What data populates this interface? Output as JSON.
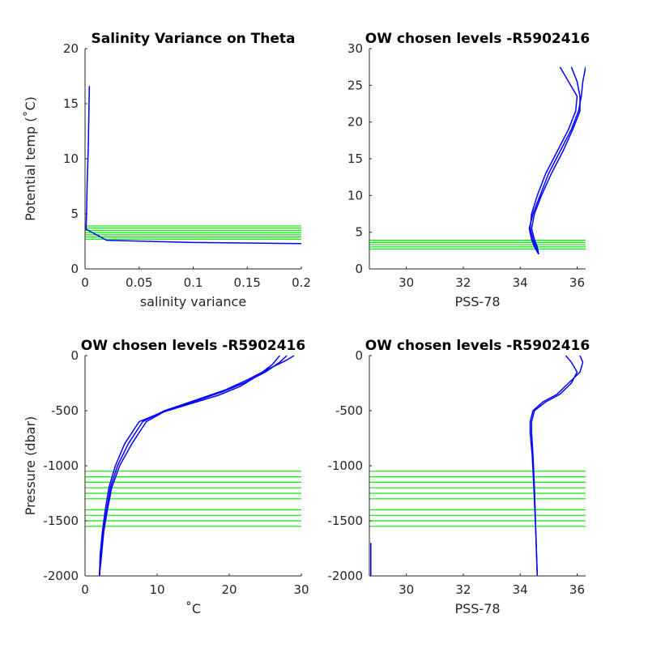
{
  "chart_data": [
    {
      "id": "p1",
      "type": "line",
      "title": "Salinity Variance on Theta",
      "xlabel": "salinity variance",
      "ylabel": "Potential temp (˚C)",
      "xlim": [
        0,
        0.2
      ],
      "ylim": [
        0,
        20
      ],
      "xticks": [
        0,
        0.05,
        0.1,
        0.15,
        0.2
      ],
      "yticks": [
        0,
        5,
        10,
        15,
        20
      ],
      "y_reversed": false,
      "series_color": "#0000ff",
      "levels_color": "#00ee00",
      "levels": [
        2.7,
        2.9,
        3.1,
        3.3,
        3.5,
        3.7,
        3.9
      ],
      "series": [
        {
          "x": [
            0.004,
            0.0035,
            0.003,
            0.002,
            0.0015,
            0.001,
            0.02,
            0.1,
            0.2
          ],
          "y": [
            16.6,
            14,
            11,
            8,
            5.5,
            3.6,
            2.6,
            2.4,
            2.3
          ]
        }
      ]
    },
    {
      "id": "p2",
      "type": "line",
      "title": "OW chosen levels -R5902416",
      "xlabel": "PSS-78",
      "ylabel": "",
      "xlim": [
        28.7,
        36.3
      ],
      "ylim": [
        0,
        30
      ],
      "xticks": [
        30,
        32,
        34,
        36
      ],
      "yticks": [
        0,
        5,
        10,
        15,
        20,
        25,
        30
      ],
      "y_reversed": false,
      "series_color": "#0000ff",
      "levels_color": "#00ee00",
      "levels": [
        2.7,
        3.0,
        3.3,
        3.6,
        3.9
      ],
      "series": [
        {
          "x": [
            34.65,
            34.55,
            34.45,
            34.35,
            34.4,
            34.6,
            34.9,
            35.3,
            35.7,
            35.95,
            36.0,
            35.7,
            35.4
          ],
          "y": [
            2.0,
            3.0,
            4.0,
            5.5,
            7.5,
            10,
            13,
            16,
            19,
            21.5,
            23.5,
            25.5,
            27.5
          ]
        },
        {
          "x": [
            34.65,
            34.5,
            34.4,
            34.32,
            34.45,
            34.7,
            35.0,
            35.4,
            35.8,
            36.05,
            36.15,
            36.2,
            36.3
          ],
          "y": [
            2.0,
            3.0,
            4.0,
            5.5,
            7.5,
            10,
            13,
            16,
            19,
            21.5,
            23.5,
            25.5,
            27.5
          ]
        },
        {
          "x": [
            34.65,
            34.6,
            34.5,
            34.4,
            34.5,
            34.75,
            35.1,
            35.5,
            35.85,
            36.1,
            36.1,
            36.0,
            35.8
          ],
          "y": [
            2.0,
            3.0,
            4.0,
            5.5,
            7.5,
            10,
            13,
            16,
            19,
            21.5,
            23.5,
            25.5,
            27.5
          ]
        }
      ]
    },
    {
      "id": "p3",
      "type": "line",
      "title": "OW chosen levels -R5902416",
      "xlabel": "˚C",
      "ylabel": "Pressure (dbar)",
      "xlim": [
        0,
        30
      ],
      "ylim": [
        -2000,
        0
      ],
      "xticks": [
        0,
        10,
        20,
        30
      ],
      "yticks": [
        0,
        -500,
        -1000,
        -1500,
        -2000
      ],
      "y_reversed": false,
      "series_color": "#0000ff",
      "levels_color": "#00ee00",
      "levels": [
        -1050,
        -1100,
        -1150,
        -1200,
        -1250,
        -1300,
        -1400,
        -1450,
        -1500,
        -1550
      ],
      "series": [
        {
          "x": [
            2.0,
            2.2,
            2.5,
            3.0,
            3.5,
            4.5,
            6.0,
            8.0,
            11.0,
            15.0,
            19.0,
            22.0,
            25.0,
            27.0,
            28.0
          ],
          "y": [
            -2000,
            -1800,
            -1600,
            -1400,
            -1200,
            -1000,
            -800,
            -600,
            -500,
            -420,
            -330,
            -250,
            -150,
            -60,
            0
          ]
        },
        {
          "x": [
            2.0,
            2.1,
            2.4,
            2.8,
            3.3,
            4.2,
            5.5,
            7.5,
            10.5,
            14.5,
            18.5,
            21.5,
            24.0,
            26.0,
            27.0
          ],
          "y": [
            -2000,
            -1800,
            -1600,
            -1400,
            -1200,
            -1000,
            -800,
            -600,
            -520,
            -440,
            -360,
            -280,
            -180,
            -80,
            0
          ]
        },
        {
          "x": [
            2.0,
            2.3,
            2.6,
            3.1,
            3.7,
            4.8,
            6.5,
            8.5,
            11.5,
            15.5,
            19.5,
            22.5,
            25.5,
            28.0,
            29.0
          ],
          "y": [
            -2000,
            -1800,
            -1600,
            -1400,
            -1200,
            -1000,
            -800,
            -600,
            -490,
            -400,
            -310,
            -220,
            -120,
            -40,
            0
          ]
        }
      ]
    },
    {
      "id": "p4",
      "type": "line",
      "title": "OW chosen levels -R5902416",
      "xlabel": "PSS-78",
      "ylabel": "",
      "xlim": [
        28.7,
        36.3
      ],
      "ylim": [
        -2000,
        0
      ],
      "xticks": [
        30,
        32,
        34,
        36
      ],
      "yticks": [
        0,
        -500,
        -1000,
        -1500,
        -2000
      ],
      "y_reversed": false,
      "series_color": "#0000ff",
      "levels_color": "#00ee00",
      "levels": [
        -1050,
        -1100,
        -1150,
        -1200,
        -1250,
        -1300,
        -1400,
        -1450,
        -1500,
        -1550
      ],
      "series": [
        {
          "x": [
            34.6,
            34.55,
            34.5,
            34.45,
            34.4,
            34.4,
            34.5,
            34.9,
            35.4,
            35.8,
            36.0,
            35.8,
            35.6
          ],
          "y": [
            -2000,
            -1600,
            -1200,
            -900,
            -700,
            -600,
            -500,
            -420,
            -350,
            -250,
            -150,
            -60,
            0
          ]
        },
        {
          "x": [
            34.6,
            34.55,
            34.48,
            34.42,
            34.35,
            34.35,
            34.45,
            34.8,
            35.3,
            35.7,
            36.1,
            36.2,
            36.1
          ],
          "y": [
            -2000,
            -1600,
            -1200,
            -900,
            -700,
            -600,
            -500,
            -420,
            -350,
            -250,
            -150,
            -60,
            0
          ]
        },
        {
          "x": [
            28.75,
            28.75
          ],
          "y": [
            -1700,
            -2000
          ]
        }
      ]
    }
  ]
}
